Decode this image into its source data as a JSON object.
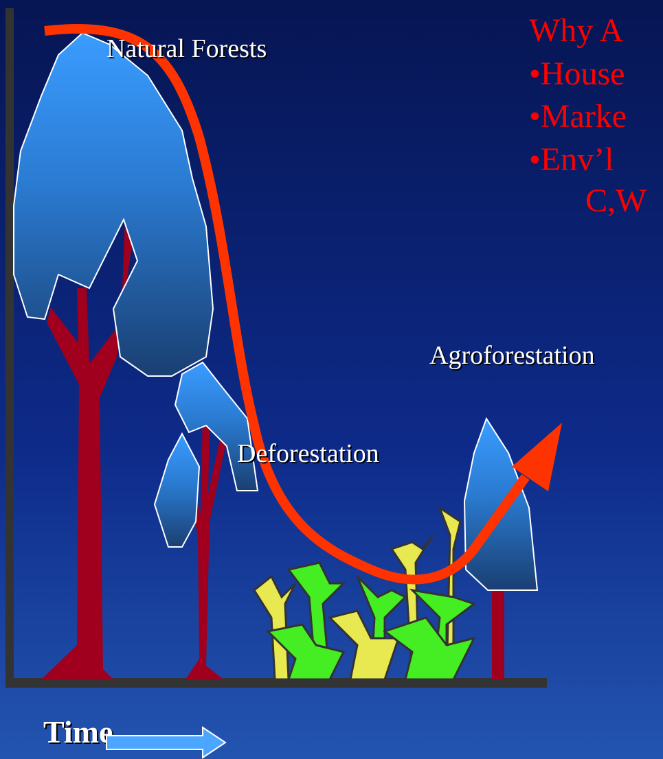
{
  "labels": {
    "natural_forests": "Natural Forests",
    "deforestation": "Deforestation",
    "agroforestation": "Agroforestation",
    "time": "Time"
  },
  "sidebar": {
    "title": "Why A",
    "items": [
      "•House",
      "•Marke",
      "•Env’l"
    ],
    "continuation": "C,W"
  }
}
